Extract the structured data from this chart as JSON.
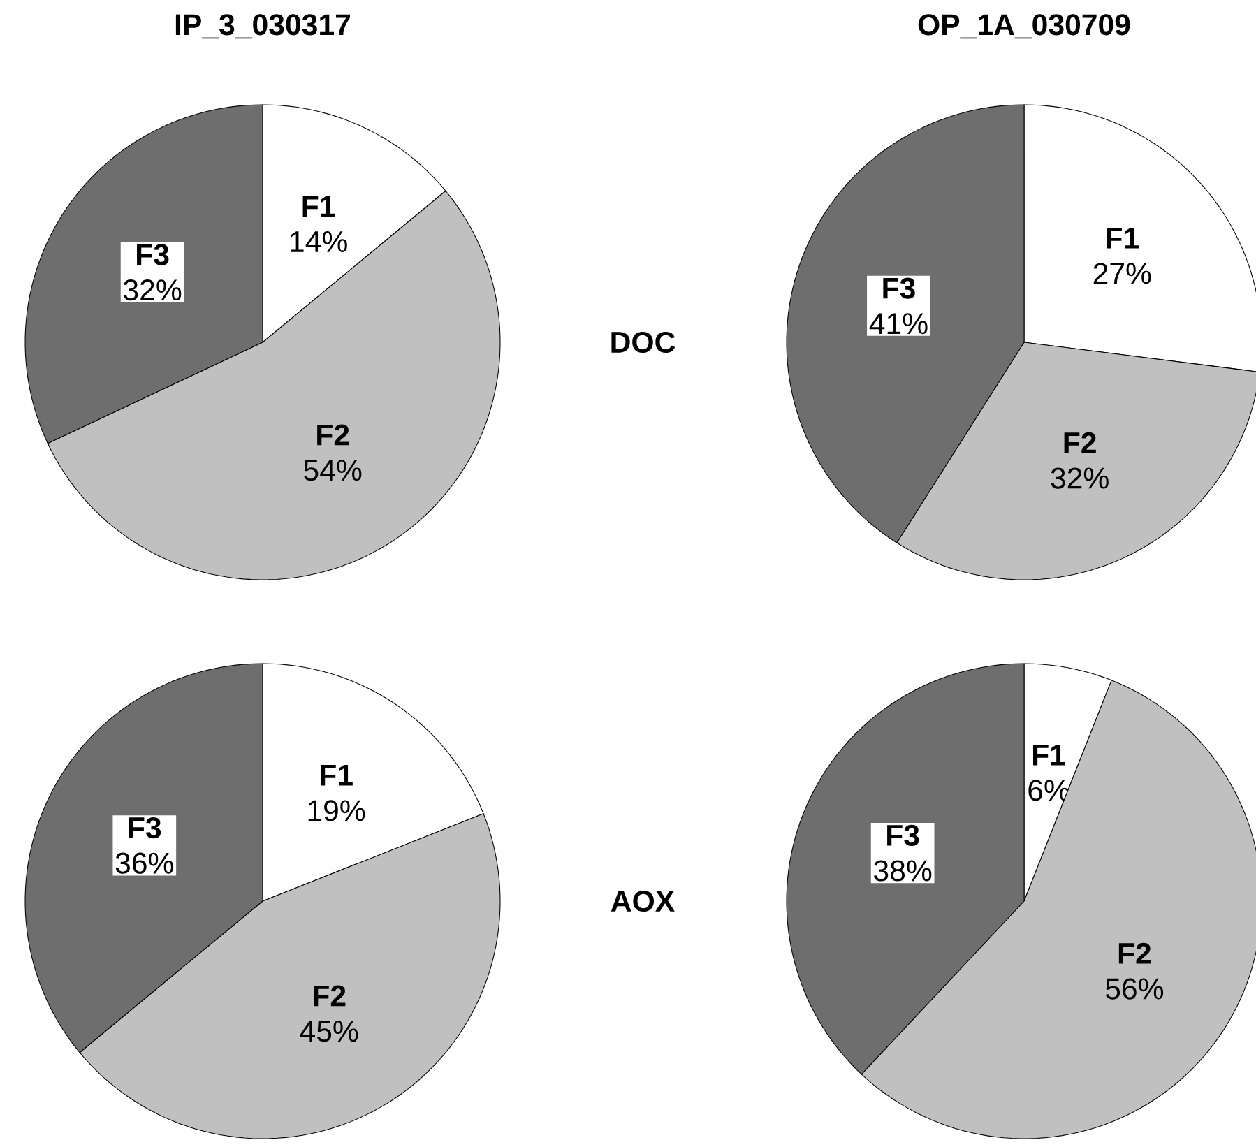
{
  "chart_data": [
    {
      "type": "pie",
      "title": "IP_3_030317",
      "categories": [
        "F1",
        "F2",
        "F3"
      ],
      "values": [
        14,
        54,
        32
      ],
      "value_labels": [
        "14%",
        "54%",
        "32%"
      ],
      "colors": [
        "#ffffff",
        "#c0c0c0",
        "#6e6e6e"
      ],
      "annotations": [
        "DOC"
      ]
    },
    {
      "type": "pie",
      "title": "OP_1A_030709",
      "categories": [
        "F1",
        "F2",
        "F3"
      ],
      "values": [
        27,
        32,
        41
      ],
      "value_labels": [
        "27%",
        "32%",
        "41%"
      ],
      "colors": [
        "#ffffff",
        "#c0c0c0",
        "#6e6e6e"
      ]
    },
    {
      "type": "pie",
      "categories": [
        "F1",
        "F2",
        "F3"
      ],
      "values": [
        19,
        45,
        36
      ],
      "value_labels": [
        "19%",
        "45%",
        "36%"
      ],
      "colors": [
        "#ffffff",
        "#c0c0c0",
        "#6e6e6e"
      ],
      "annotations": [
        "AOX"
      ]
    },
    {
      "type": "pie",
      "categories": [
        "F1",
        "F2",
        "F3"
      ],
      "values": [
        6,
        56,
        38
      ],
      "value_labels": [
        "6%",
        "56%",
        "38%"
      ],
      "colors": [
        "#ffffff",
        "#c0c0c0",
        "#6e6e6e"
      ]
    }
  ]
}
